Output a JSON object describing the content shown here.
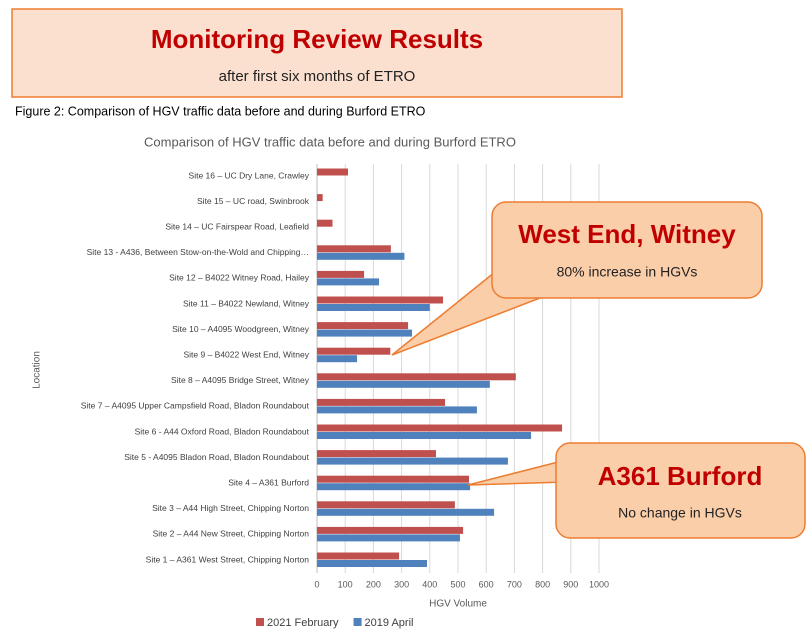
{
  "header": {
    "title": "Monitoring Review Results",
    "subtitle": "after first six months of ETRO"
  },
  "figure_caption": "Figure 2: Comparison of HGV traffic data before and during Burford ETRO",
  "chart_data": {
    "type": "bar",
    "orientation": "horizontal",
    "title": "Comparison of HGV traffic data before and during Burford ETRO",
    "x_label": "HGV Volume",
    "y_label": "Location",
    "categories": [
      "Site 16 – UC Dry Lane, Crawley",
      "Site 15 – UC road, Swinbrook",
      "Site 14 – UC Fairspear Road, Leafield",
      "Site 13 - A436, Between Stow-on-the-Wold and Chipping…",
      "Site 12 – B4022 Witney Road, Hailey",
      "Site 11 – B4022 Newland, Witney",
      "Site 10 – A4095 Woodgreen, Witney",
      "Site 9 – B4022 West End, Witney",
      "Site 8 – A4095 Bridge Street, Witney",
      "Site 7 – A4095 Upper Campsfield Road, Bladon Roundabout",
      "Site 6 - A44 Oxford Road, Bladon Roundabout",
      "Site 5 - A4095 Bladon Road, Bladon Roundabout",
      "Site 4 – A361 Burford",
      "Site 3 – A44 High Street, Chipping Norton",
      "Site 2 – A44 New Street, Chipping Norton",
      "Site 1 – A361 West Street, Chipping Norton"
    ],
    "series": [
      {
        "name": "2021 February",
        "color": "#c0504d",
        "values": [
          110,
          20,
          55,
          262,
          167,
          447,
          323,
          260,
          705,
          454,
          869,
          422,
          539,
          489,
          518,
          291
        ]
      },
      {
        "name": "2019 April",
        "color": "#4f81bd",
        "values": [
          null,
          null,
          null,
          310,
          220,
          400,
          337,
          142,
          613,
          567,
          759,
          677,
          543,
          628,
          507,
          390
        ]
      }
    ],
    "xlim": [
      0,
      1000
    ],
    "xticks": [
      0,
      100,
      200,
      300,
      400,
      500,
      600,
      700,
      800,
      900,
      1000
    ],
    "grid": true,
    "legend": "bottom",
    "annotations": [
      {
        "title": "West End, Witney",
        "text": "80% increase in HGVs"
      },
      {
        "title": "A361 Burford",
        "text": "No change in HGVs"
      }
    ]
  }
}
